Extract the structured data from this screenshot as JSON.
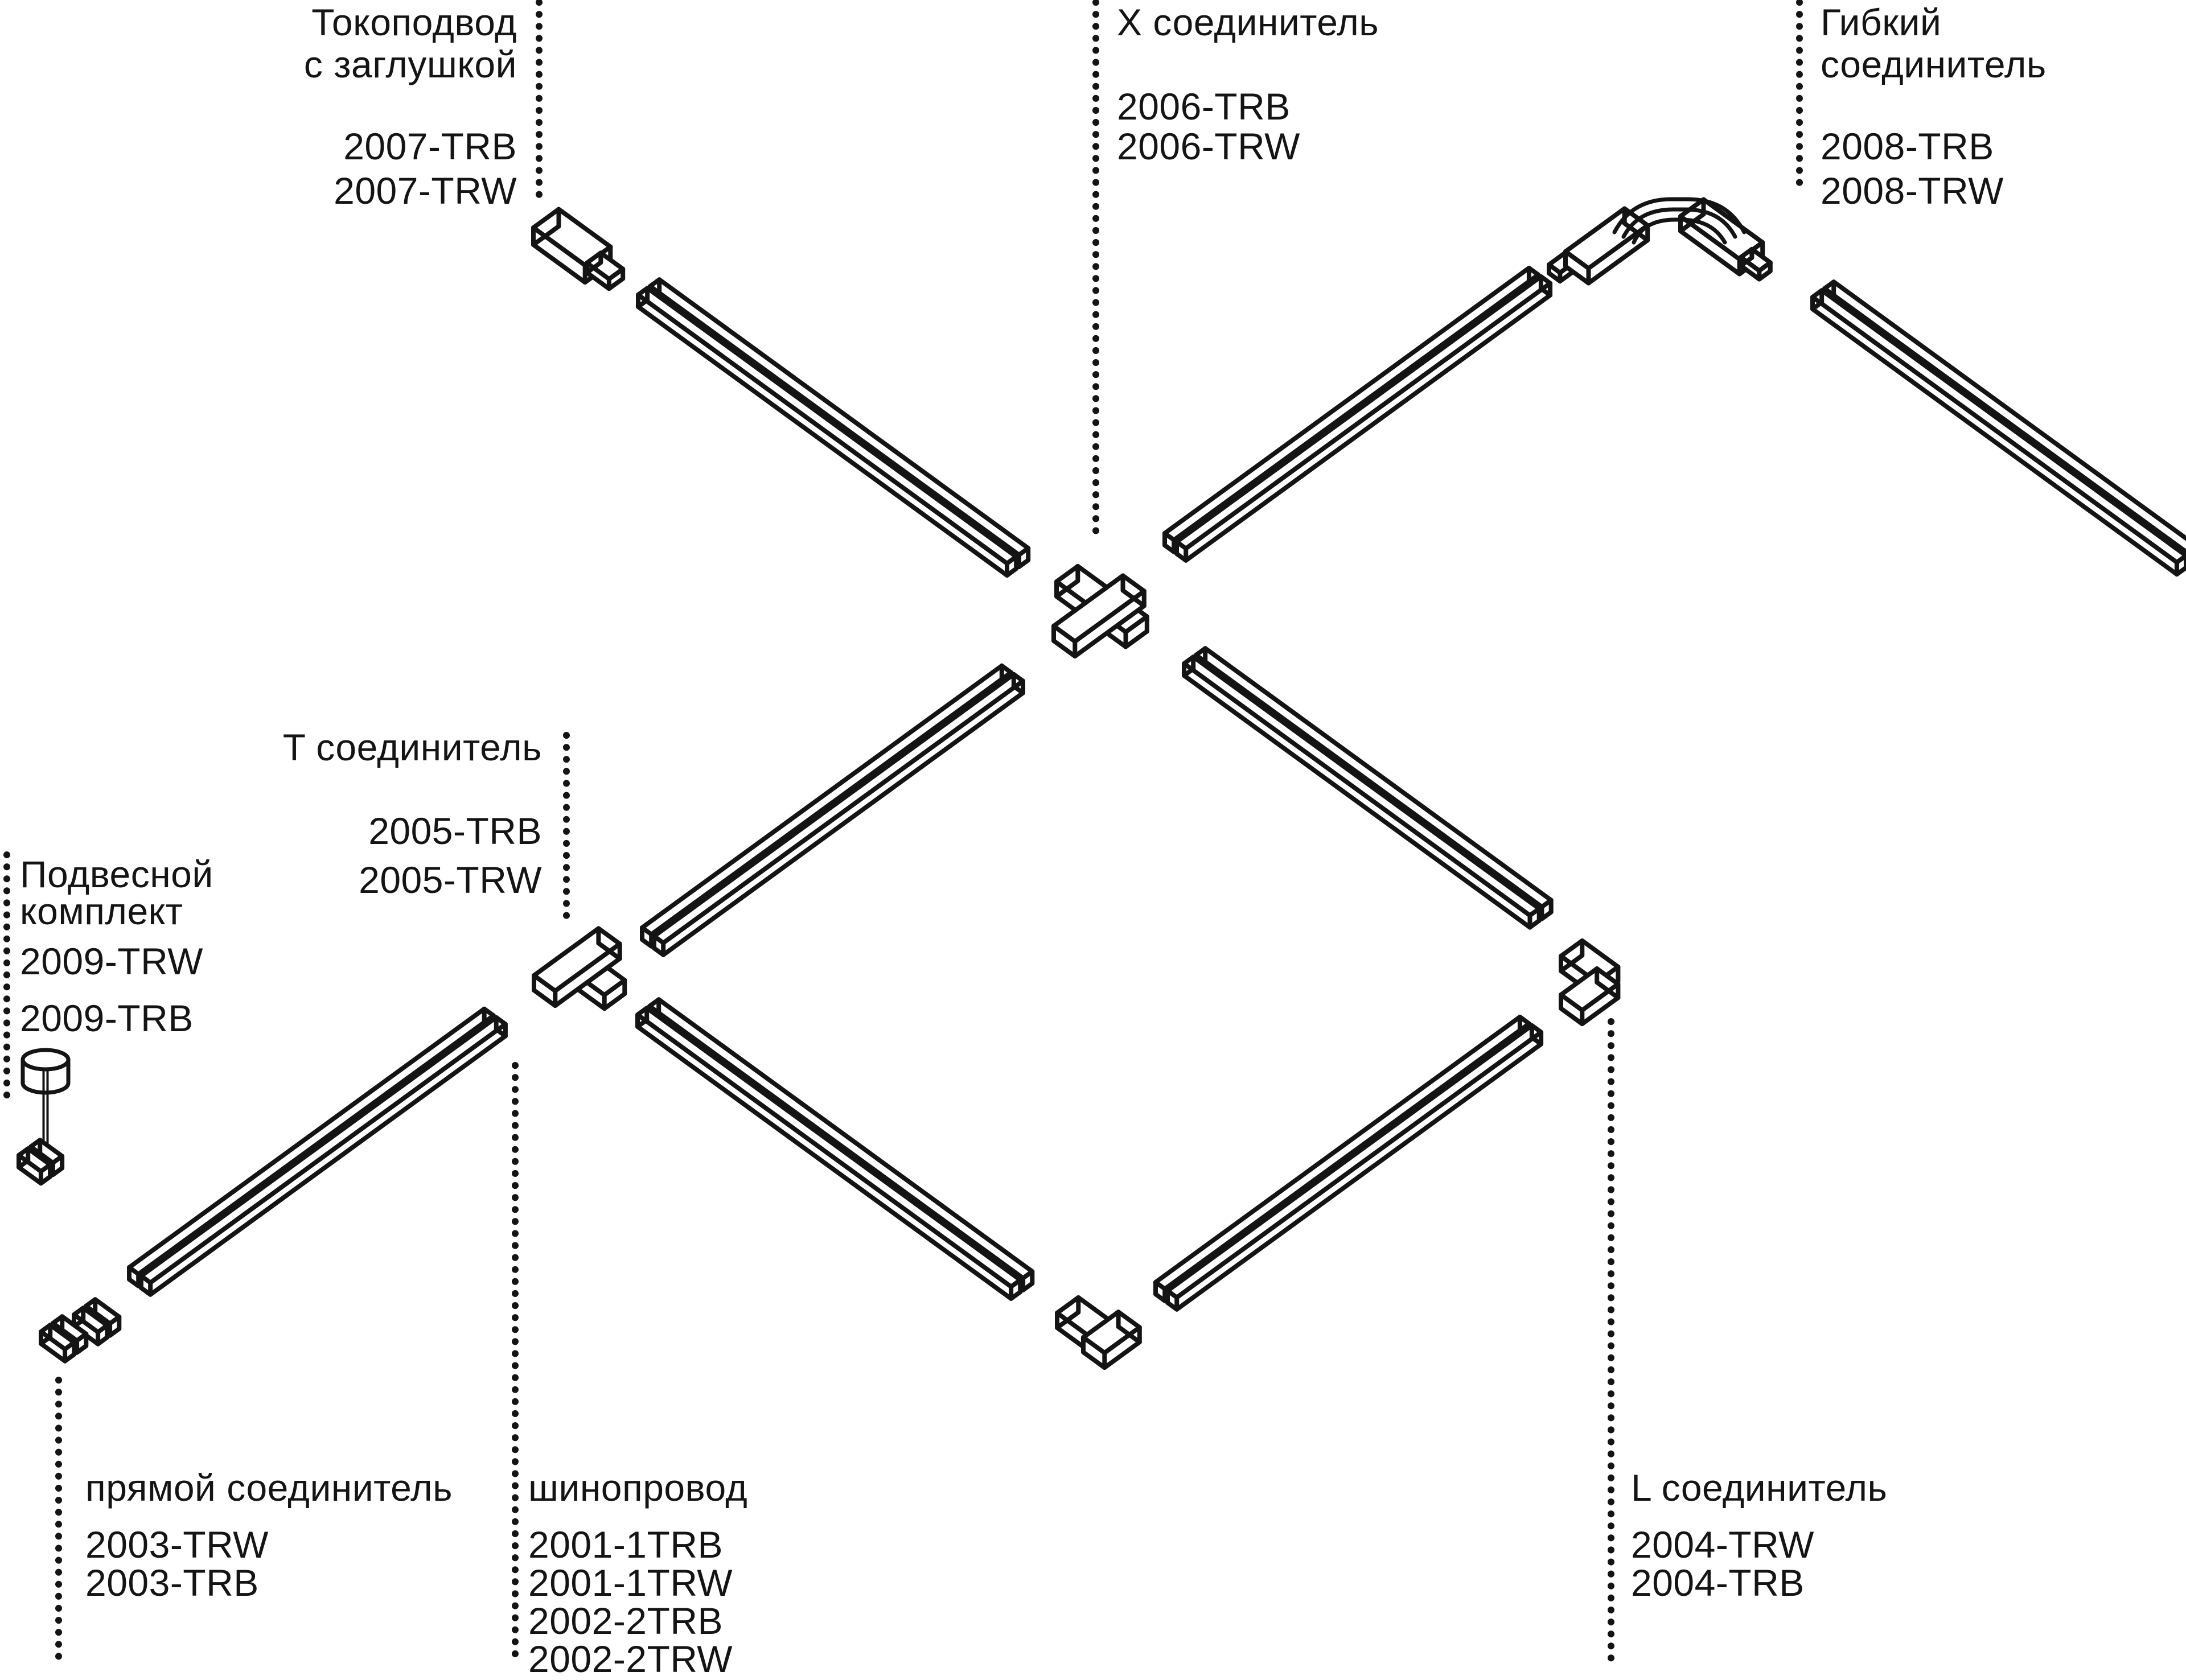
{
  "page": {
    "background": "#ffffff",
    "ink": "#141414"
  },
  "labels": [
    {
      "id": "power-feed",
      "title": [
        "Токоподвод",
        "с заглушкой"
      ],
      "codes": [
        "2007-TRB",
        "2007-TRW"
      ]
    },
    {
      "id": "x-connector",
      "title": [
        "X соединитель"
      ],
      "codes": [
        "2006-TRB",
        "2006-TRW"
      ]
    },
    {
      "id": "flex-connector",
      "title": [
        "Гибкий",
        "соединитель"
      ],
      "codes": [
        "2008-TRB",
        "2008-TRW"
      ]
    },
    {
      "id": "t-connector",
      "title": [
        "T соединитель"
      ],
      "codes": [
        "2005-TRB",
        "2005-TRW"
      ]
    },
    {
      "id": "pendant-kit",
      "title": [
        "Подвесной",
        "комплект"
      ],
      "codes": [
        "2009-TRW",
        "2009-TRB"
      ]
    },
    {
      "id": "straight-connector",
      "title": [
        "прямой соединитель"
      ],
      "codes": [
        "2003-TRW",
        "2003-TRB"
      ]
    },
    {
      "id": "track",
      "title": [
        "шинопровод"
      ],
      "codes": [
        "2001-1TRB",
        "2001-1TRW",
        "2002-2TRB",
        "2002-2TRW"
      ]
    },
    {
      "id": "l-connector",
      "title": [
        "L соединитель"
      ],
      "codes": [
        "2004-TRW",
        "2004-TRB"
      ]
    }
  ]
}
